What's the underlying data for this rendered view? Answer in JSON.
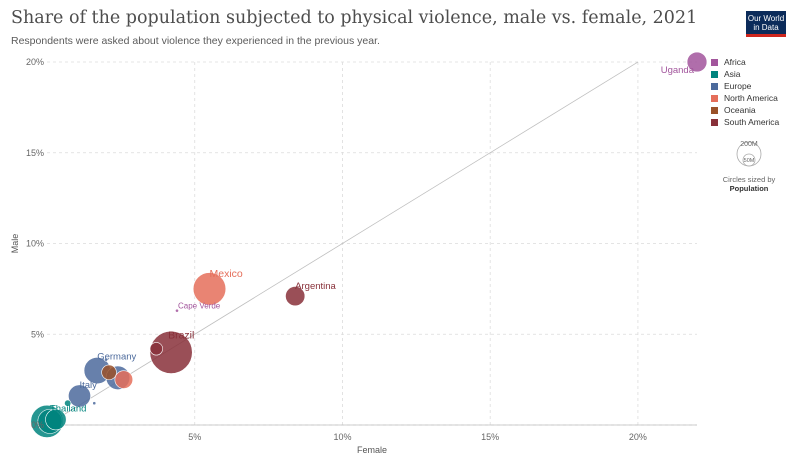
{
  "header": {
    "title": "Share of the population subjected to physical violence, male vs. female, 2021",
    "subtitle": "Respondents were asked about violence they experienced in the previous year.",
    "logo_line1": "Our World",
    "logo_line2": "in Data"
  },
  "colors": {
    "Africa": "#a2559c",
    "Asia": "#00847e",
    "Europe": "#4c6a9c",
    "North America": "#e56e5a",
    "Oceania": "#9a5129",
    "South America": "#883039"
  },
  "legend": {
    "items": [
      "Africa",
      "Asia",
      "Europe",
      "North America",
      "Oceania",
      "South America"
    ],
    "size_big": "200M",
    "size_small": "50M",
    "size_note": "Circles sized by",
    "size_variable": "Population"
  },
  "chart_data": {
    "type": "scatter",
    "title": "Share of the population subjected to physical violence, male vs. female, 2021",
    "xlabel": "Female",
    "ylabel": "Male",
    "xlim": [
      0,
      22
    ],
    "ylim": [
      0,
      20
    ],
    "x_ticks": [
      "5%",
      "10%",
      "15%",
      "20%"
    ],
    "y_ticks": [
      "0%",
      "5%",
      "10%",
      "15%",
      "20%"
    ],
    "grid": true,
    "reference_line": "y = x",
    "legend_placement": "right",
    "size_variable": "Population",
    "points": [
      {
        "label": "Uganda",
        "region": "Africa",
        "x": 22.0,
        "y": 20.0,
        "pop": 47
      },
      {
        "label": "Mexico",
        "region": "North America",
        "x": 5.5,
        "y": 7.5,
        "pop": 127
      },
      {
        "label": "Argentina",
        "region": "South America",
        "x": 8.4,
        "y": 7.1,
        "pop": 45
      },
      {
        "label": "Cape Verde",
        "region": "Africa",
        "x": 4.4,
        "y": 6.3,
        "pop": 0.6
      },
      {
        "label": "Brazil",
        "region": "South America",
        "x": 4.2,
        "y": 4.0,
        "pop": 214
      },
      {
        "label": "Germany",
        "region": "Europe",
        "x": 1.7,
        "y": 3.0,
        "pop": 83
      },
      {
        "label": "Italy",
        "region": "Europe",
        "x": 1.1,
        "y": 1.6,
        "pop": 59
      },
      {
        "label": "Thailand",
        "region": "Asia",
        "x": 0.1,
        "y": 0.2,
        "pop": 70
      },
      {
        "label": "",
        "region": "South America",
        "x": 3.7,
        "y": 4.2,
        "pop": 19
      },
      {
        "label": "",
        "region": "Europe",
        "x": 2.4,
        "y": 2.6,
        "pop": 67
      },
      {
        "label": "",
        "region": "North America",
        "x": 2.6,
        "y": 2.5,
        "pop": 38
      },
      {
        "label": "",
        "region": "Oceania",
        "x": 2.1,
        "y": 2.9,
        "pop": 26
      },
      {
        "label": "",
        "region": "Europe",
        "x": 2.0,
        "y": 3.6,
        "pop": 1
      },
      {
        "label": "",
        "region": "Asia",
        "x": 0.7,
        "y": 1.2,
        "pop": 5
      },
      {
        "label": "",
        "region": "Europe",
        "x": 1.6,
        "y": 1.2,
        "pop": 1
      },
      {
        "label": "",
        "region": "Asia",
        "x": 0.0,
        "y": 0.2,
        "pop": 125
      },
      {
        "label": "",
        "region": "Asia",
        "x": 0.3,
        "y": 0.3,
        "pop": 51
      }
    ]
  }
}
